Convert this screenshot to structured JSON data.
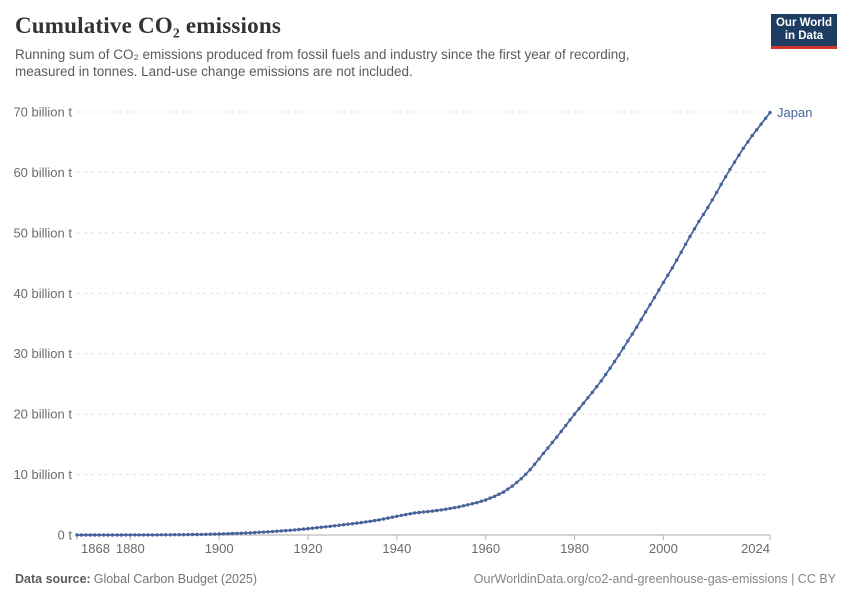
{
  "header": {
    "title": "Cumulative CO₂ emissions",
    "subtitle_lines": [
      "Running sum of CO₂ emissions produced from fossil fuels and industry since the first year of recording,",
      "measured in tonnes. Land-use change emissions are not included."
    ]
  },
  "logo": {
    "line1": "Our World",
    "line2": "in Data",
    "bg_color": "#1d3d63",
    "accent_color": "#d2362a"
  },
  "footer": {
    "source_label": "Data source:",
    "source_value": "Global Carbon Budget (2025)",
    "attribution": "OurWorldinData.org/co2-and-greenhouse-gas-emissions | CC BY"
  },
  "chart_data": {
    "type": "line",
    "title": "Cumulative CO₂ emissions",
    "entity": "Japan",
    "y_unit": "billion tonnes CO₂",
    "xlim": [
      1868,
      2024
    ],
    "ylim": [
      0,
      70
    ],
    "grid": true,
    "legend_position": "end-of-line-label",
    "y_ticks": [
      {
        "value": 0,
        "label": "0 t"
      },
      {
        "value": 10,
        "label": "10 billion t"
      },
      {
        "value": 20,
        "label": "20 billion t"
      },
      {
        "value": 30,
        "label": "30 billion t"
      },
      {
        "value": 40,
        "label": "40 billion t"
      },
      {
        "value": 50,
        "label": "50 billion t"
      },
      {
        "value": 60,
        "label": "60 billion t"
      },
      {
        "value": 70,
        "label": "70 billion t"
      }
    ],
    "x_ticks": [
      {
        "value": 1868,
        "label": "1868"
      },
      {
        "value": 1880,
        "label": "1880"
      },
      {
        "value": 1900,
        "label": "1900"
      },
      {
        "value": 1920,
        "label": "1920"
      },
      {
        "value": 1940,
        "label": "1940"
      },
      {
        "value": 1960,
        "label": "1960"
      },
      {
        "value": 1980,
        "label": "1980"
      },
      {
        "value": 2000,
        "label": "2000"
      },
      {
        "value": 2024,
        "label": "2024"
      }
    ],
    "series": [
      {
        "name": "Japan",
        "color": "#45639a",
        "points": [
          [
            1868,
            0.001
          ],
          [
            1872,
            0.003
          ],
          [
            1876,
            0.006
          ],
          [
            1880,
            0.01
          ],
          [
            1884,
            0.018
          ],
          [
            1888,
            0.03
          ],
          [
            1892,
            0.055
          ],
          [
            1896,
            0.1
          ],
          [
            1900,
            0.17
          ],
          [
            1904,
            0.27
          ],
          [
            1908,
            0.4
          ],
          [
            1912,
            0.57
          ],
          [
            1916,
            0.78
          ],
          [
            1920,
            1.05
          ],
          [
            1924,
            1.35
          ],
          [
            1928,
            1.7
          ],
          [
            1932,
            2.05
          ],
          [
            1936,
            2.5
          ],
          [
            1940,
            3.1
          ],
          [
            1944,
            3.65
          ],
          [
            1948,
            3.95
          ],
          [
            1950,
            4.15
          ],
          [
            1952,
            4.4
          ],
          [
            1954,
            4.65
          ],
          [
            1956,
            5.0
          ],
          [
            1958,
            5.35
          ],
          [
            1960,
            5.8
          ],
          [
            1962,
            6.4
          ],
          [
            1964,
            7.1
          ],
          [
            1966,
            8.1
          ],
          [
            1968,
            9.3
          ],
          [
            1970,
            10.8
          ],
          [
            1972,
            12.6
          ],
          [
            1974,
            14.4
          ],
          [
            1976,
            16.2
          ],
          [
            1978,
            18.1
          ],
          [
            1980,
            20.0
          ],
          [
            1982,
            21.8
          ],
          [
            1984,
            23.6
          ],
          [
            1986,
            25.5
          ],
          [
            1988,
            27.6
          ],
          [
            1990,
            29.8
          ],
          [
            1992,
            32.1
          ],
          [
            1994,
            34.4
          ],
          [
            1996,
            36.9
          ],
          [
            1998,
            39.3
          ],
          [
            2000,
            41.8
          ],
          [
            2002,
            44.2
          ],
          [
            2004,
            46.8
          ],
          [
            2006,
            49.4
          ],
          [
            2008,
            51.9
          ],
          [
            2010,
            54.2
          ],
          [
            2012,
            56.7
          ],
          [
            2014,
            59.3
          ],
          [
            2016,
            61.7
          ],
          [
            2018,
            64.0
          ],
          [
            2020,
            66.1
          ],
          [
            2022,
            68.0
          ],
          [
            2024,
            69.9
          ]
        ]
      }
    ]
  }
}
